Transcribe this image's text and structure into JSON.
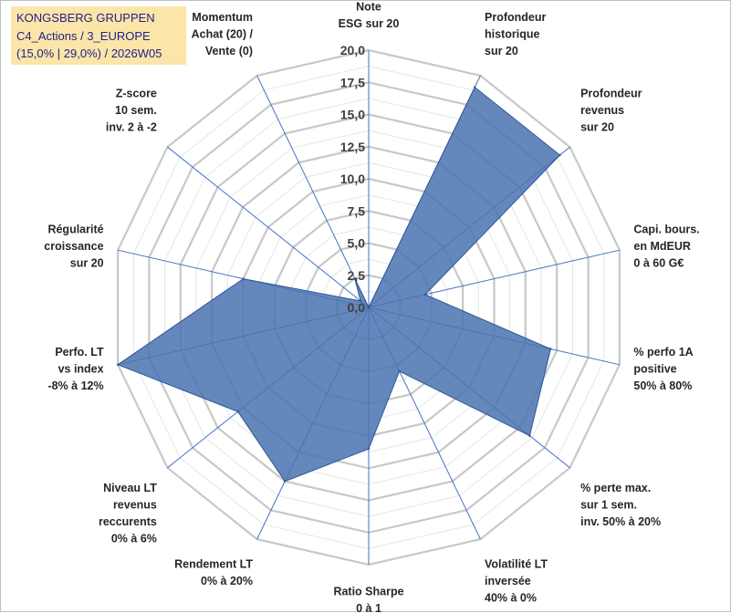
{
  "title": {
    "line1": "KONGSBERG GRUPPEN",
    "line2": "C4_Actions / 3_EUROPE",
    "line3": "(15,0% | 29,0%) / 2026W05"
  },
  "colors": {
    "fill": "#4a73b0",
    "grid": "#c8c8c8",
    "spoke": "#4472c4",
    "title_bg": "#fbe5a8"
  },
  "chart_data": {
    "type": "radar",
    "rmin": 0,
    "rmax": 20,
    "tick_step": 2.5,
    "tick_labels": [
      "0,0",
      "2,5",
      "5,0",
      "7,5",
      "10,0",
      "12,5",
      "15,0",
      "17,5",
      "20,0"
    ],
    "axes": [
      {
        "label": [
          "Note",
          "ESG sur 20"
        ],
        "value": 0
      },
      {
        "label": [
          "Profondeur",
          "historique",
          "sur 20"
        ],
        "value": 19
      },
      {
        "label": [
          "Profondeur",
          "revenus",
          "sur 20"
        ],
        "value": 19
      },
      {
        "label": [
          "Capi. bours.",
          "en MdEUR",
          "0 à 60 G€"
        ],
        "value": 4.5
      },
      {
        "label": [
          "% perfo 1A",
          "positive",
          "50% à 80%"
        ],
        "value": 14.5
      },
      {
        "label": [
          "% perte max.",
          "sur 1 sem.",
          "inv. 50% à 20%"
        ],
        "value": 16
      },
      {
        "label": [
          "Volatilité LT",
          "inversée",
          "40% à 0%"
        ],
        "value": 5.5
      },
      {
        "label": [
          "Ratio Sharpe",
          "0 à 1"
        ],
        "value": 11
      },
      {
        "label": [
          "Rendement LT",
          "0% à 20%"
        ],
        "value": 15
      },
      {
        "label": [
          "Niveau LT",
          "revenus",
          "reccurents",
          "0% à 6%"
        ],
        "value": 13
      },
      {
        "label": [
          "Perfo. LT",
          "vs index",
          "-8% à 12%"
        ],
        "value": 20
      },
      {
        "label": [
          "Régularité",
          "croissance",
          "sur 20"
        ],
        "value": 10
      },
      {
        "label": [
          "Z-score",
          "10 sem.",
          "inv. 2 à -2"
        ],
        "value": 0.8
      },
      {
        "label": [
          "Momentum",
          "Achat (20) /",
          "Vente (0)"
        ],
        "value": 2.5
      }
    ]
  }
}
